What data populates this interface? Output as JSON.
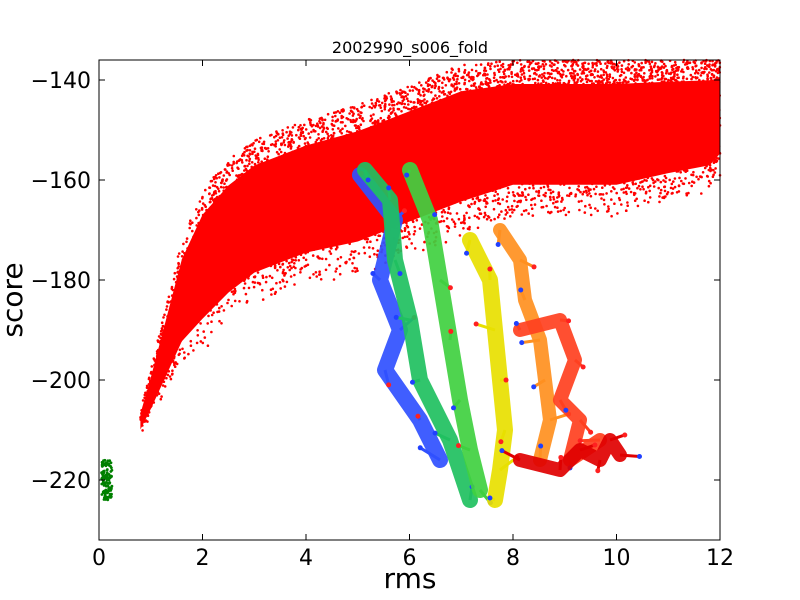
{
  "chart_data": {
    "type": "scatter",
    "title": "2002990_s006_fold",
    "xlabel": "rms",
    "ylabel": "score",
    "xlim": [
      0,
      12
    ],
    "ylim": [
      -232,
      -136
    ],
    "xticks": [
      0,
      2,
      4,
      6,
      8,
      10,
      12
    ],
    "yticks": [
      -140,
      -160,
      -180,
      -200,
      -220
    ],
    "xtick_labels": [
      "0",
      "2",
      "4",
      "6",
      "8",
      "10",
      "12"
    ],
    "ytick_labels": [
      "−140",
      "−160",
      "−180",
      "−200",
      "−220"
    ],
    "grid": false,
    "legend": "none",
    "series": [
      {
        "color": "#ff0000",
        "envelope": {
          "x": [
            0.8,
            1.0,
            1.3,
            1.6,
            2.0,
            2.5,
            3.0,
            3.5,
            4.0,
            5.0,
            6.0,
            7.0,
            8.0,
            9.0,
            10.0,
            11.0,
            11.8,
            12.0
          ],
          "y_low": [
            -211,
            -208,
            -203,
            -198,
            -195,
            -190,
            -186,
            -184,
            -182,
            -180,
            -176,
            -172,
            -168,
            -168,
            -168,
            -165,
            -163,
            -160
          ],
          "y_high": [
            -206,
            -198,
            -185,
            -172,
            -162,
            -156,
            -152,
            -150,
            -148,
            -145,
            -141,
            -137,
            -136,
            -136,
            -136,
            -136,
            -136,
            -136
          ]
        }
      },
      {
        "color": "#008000",
        "x_range": [
          0.05,
          0.25
        ],
        "y_range": [
          -224,
          -216
        ]
      }
    ]
  },
  "inset_image": {
    "description": "protein ribbon cartoon overlay",
    "colors": [
      "#0000ff",
      "#00bfff",
      "#00c000",
      "#ffff00",
      "#ff8000",
      "#ff0000"
    ]
  }
}
